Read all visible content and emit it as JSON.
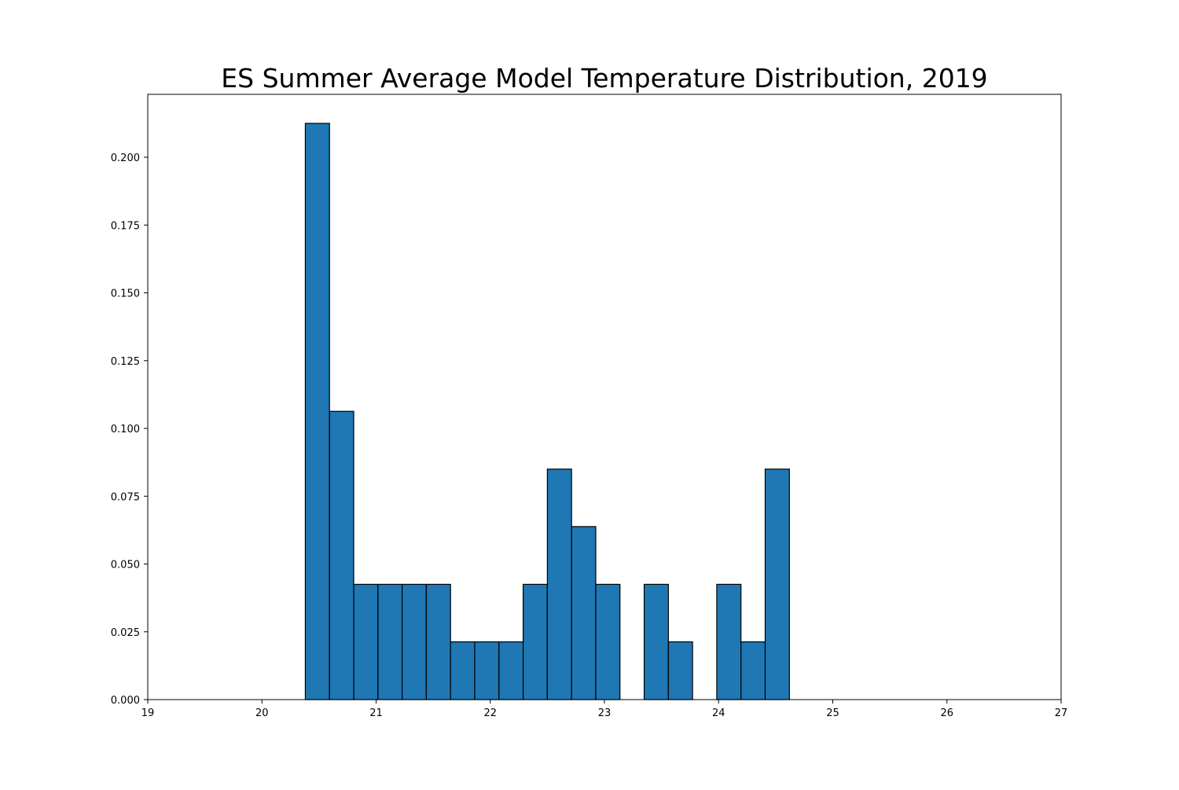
{
  "chart_data": {
    "type": "bar",
    "title": "ES Summer Average Model Temperature Distribution, 2019",
    "xlabel": "",
    "ylabel": "",
    "xlim": [
      19,
      27
    ],
    "ylim": [
      0,
      0.2232
    ],
    "x_ticks": [
      "19",
      "20",
      "21",
      "22",
      "23",
      "24",
      "25",
      "26",
      "27"
    ],
    "y_ticks": [
      "0.000",
      "0.025",
      "0.050",
      "0.075",
      "0.100",
      "0.125",
      "0.150",
      "0.175",
      "0.200"
    ],
    "grid": false,
    "bin_edges": [
      20.38,
      20.592,
      20.804,
      21.016,
      21.228,
      21.44,
      21.652,
      21.864,
      22.076,
      22.288,
      22.5,
      22.712,
      22.924,
      23.136,
      23.348,
      23.56,
      23.772,
      23.984,
      24.196,
      24.408,
      24.62
    ],
    "values": [
      0.2125,
      0.1063,
      0.0425,
      0.0425,
      0.0425,
      0.0425,
      0.0213,
      0.0213,
      0.0213,
      0.0425,
      0.085,
      0.0638,
      0.0425,
      0.0,
      0.0425,
      0.0213,
      0.0,
      0.0425,
      0.0213,
      0.085
    ],
    "bar_color": "#1f77b4",
    "edge_color": "#000000"
  }
}
